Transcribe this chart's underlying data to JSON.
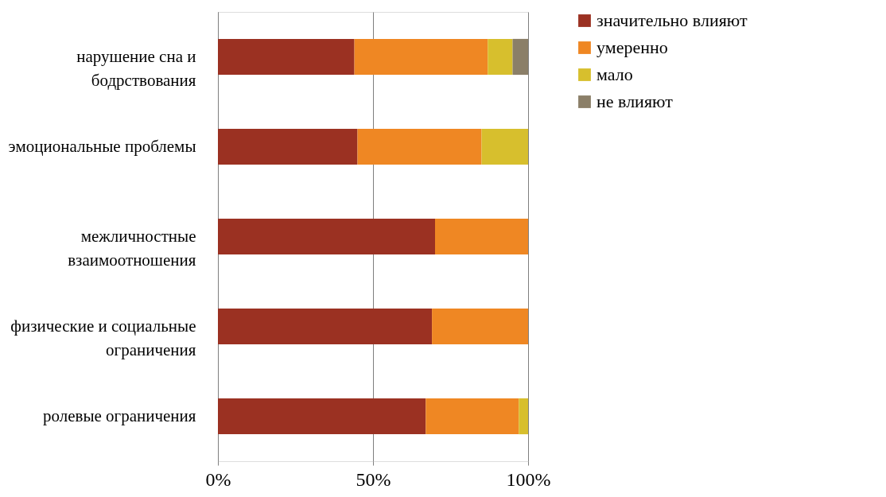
{
  "chart_data": {
    "type": "bar",
    "orientation": "horizontal",
    "stacked": true,
    "categories": [
      "нарушение сна и\nбодрствования",
      "эмоциональные проблемы",
      "межличностные\nвзаимоотношения",
      "физические и социальные\nограничения",
      "ролевые ограничения"
    ],
    "series": [
      {
        "name": "значительно влияют",
        "color": "#9b3122",
        "values": [
          44,
          45,
          70,
          69,
          67
        ]
      },
      {
        "name": "умеренно",
        "color": "#ef8723",
        "values": [
          43,
          40,
          30,
          31,
          30
        ]
      },
      {
        "name": "мало",
        "color": "#d7bf2d",
        "values": [
          8,
          15,
          null,
          null,
          3
        ]
      },
      {
        "name": "не влияют",
        "color": "#8b7f68",
        "values": [
          5,
          null,
          null,
          null,
          null
        ]
      }
    ],
    "xlim": [
      0,
      100
    ],
    "xticks": [
      {
        "value": 0,
        "label": "0%"
      },
      {
        "value": 50,
        "label": "50%"
      },
      {
        "value": 100,
        "label": "100%"
      }
    ],
    "grid": "x",
    "legend": "right"
  }
}
